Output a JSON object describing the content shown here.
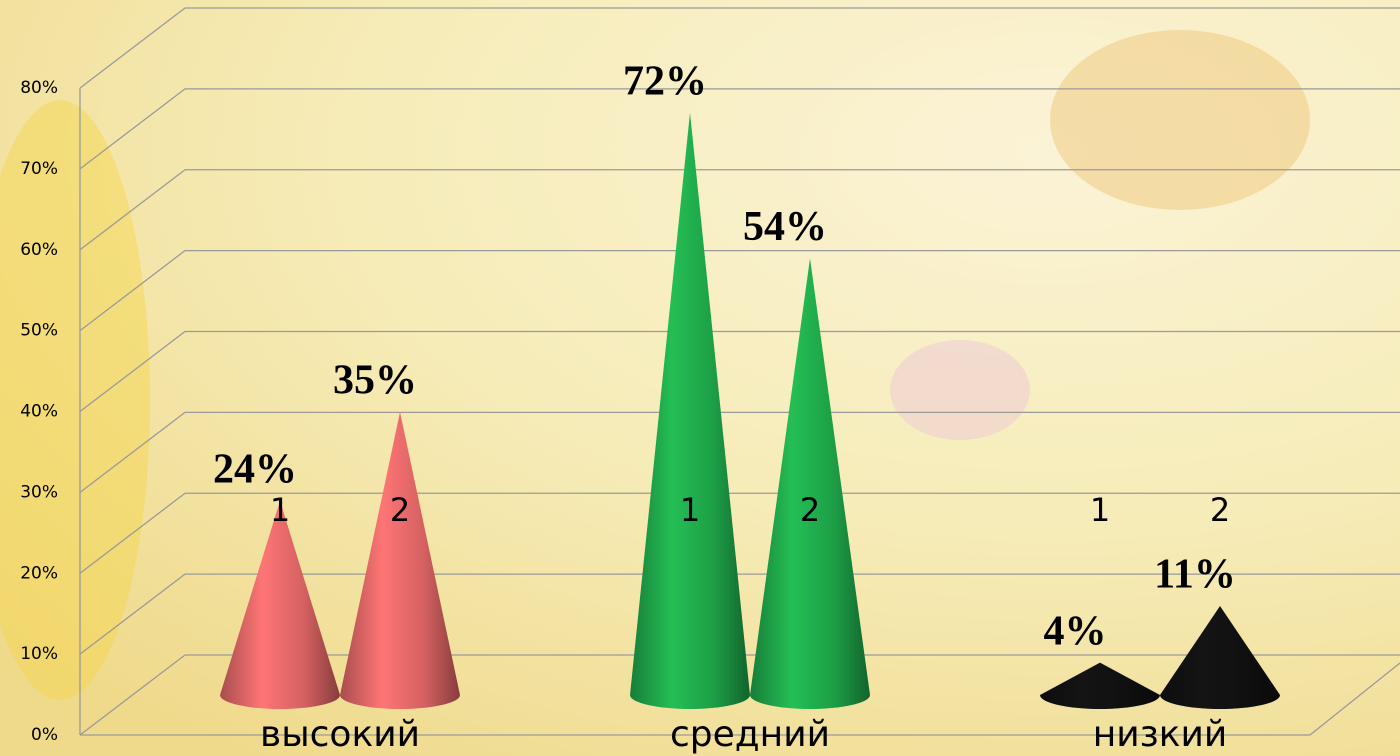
{
  "chart_data": {
    "type": "cone3d",
    "categories": [
      "высокий",
      "средний",
      "низкий"
    ],
    "category_colors": [
      "#e06666",
      "#1fa64a",
      "#111111"
    ],
    "series": [
      {
        "name": "1",
        "values": [
          24,
          72,
          4
        ],
        "value_labels": [
          "24%",
          "72%",
          "4%"
        ]
      },
      {
        "name": "2",
        "values": [
          35,
          54,
          11
        ],
        "value_labels": [
          "35%",
          "54%",
          "11%"
        ]
      }
    ],
    "ylim": [
      0,
      80
    ],
    "yticks": [
      {
        "value": 0,
        "label": "0%"
      },
      {
        "value": 10,
        "label": "10%"
      },
      {
        "value": 20,
        "label": "20%"
      },
      {
        "value": 30,
        "label": "30%"
      },
      {
        "value": 40,
        "label": "40%"
      },
      {
        "value": 50,
        "label": "50%"
      },
      {
        "value": 60,
        "label": "60%"
      },
      {
        "value": 70,
        "label": "70%"
      },
      {
        "value": 80,
        "label": "80%"
      }
    ],
    "grid": true
  }
}
